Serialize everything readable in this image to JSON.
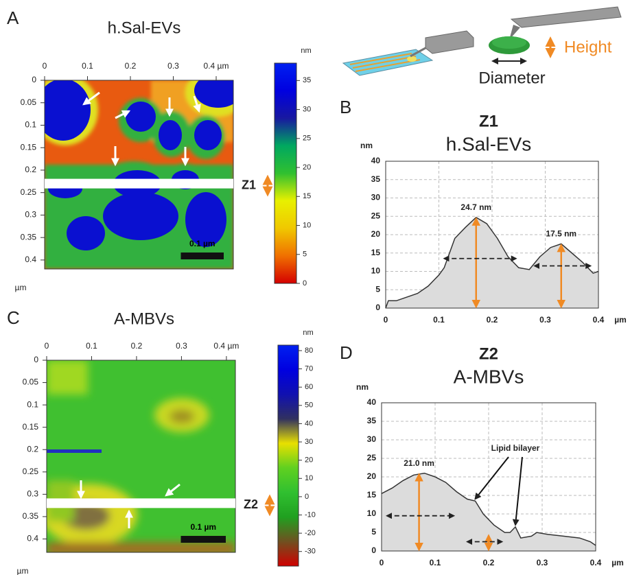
{
  "chart_data": [
    {
      "type": "afm",
      "panel": "A",
      "title": "h.Sal-EVs",
      "xlim": [
        0,
        0.44
      ],
      "xticks": [
        0,
        0.1,
        0.2,
        0.3,
        {
          "value": 0.4,
          "label": "0.4 µm"
        }
      ],
      "ylim": [
        0,
        0.42
      ],
      "yticks": [
        0,
        0.05,
        0.1,
        0.15,
        0.2,
        0.25,
        0.3,
        0.35,
        0.4
      ],
      "y_unit": "µm",
      "colorbar_unit": "nm",
      "clim": [
        0,
        38
      ],
      "cticks": [
        0,
        5,
        10,
        15,
        20,
        25,
        30,
        35
      ],
      "colormap": [
        "#d40000",
        "#f07000",
        "#f0c800",
        "#e8f000",
        "#30c030",
        "#00a860",
        "#1818a0",
        "#0000e0",
        "#0020f0"
      ],
      "scale_bar": {
        "label": "0.1 µm",
        "length": 0.1
      },
      "profile": {
        "label": "Z1",
        "y": 0.23
      }
    },
    {
      "type": "area",
      "panel": "B",
      "title": "Z1",
      "subtitle": "h.Sal-EVs",
      "y_label": "nm",
      "x_label": "µm",
      "xlim": [
        0,
        0.4
      ],
      "xticks": [
        0,
        0.1,
        0.2,
        0.3,
        0.4
      ],
      "ylim": [
        0,
        40
      ],
      "yticks": [
        0,
        5,
        10,
        15,
        20,
        25,
        30,
        35,
        40
      ],
      "grid": true,
      "x": [
        0,
        0.005,
        0.02,
        0.04,
        0.06,
        0.08,
        0.1,
        0.11,
        0.12,
        0.13,
        0.15,
        0.17,
        0.19,
        0.21,
        0.23,
        0.25,
        0.27,
        0.29,
        0.31,
        0.33,
        0.35,
        0.37,
        0.38,
        0.39,
        0.4
      ],
      "values": [
        0,
        2,
        2,
        3,
        4,
        6,
        9,
        11,
        15,
        19,
        22,
        24.7,
        23,
        19,
        14,
        11,
        10.5,
        14,
        16.5,
        17.5,
        15,
        12.5,
        11,
        9.5,
        10
      ],
      "annotations": [
        {
          "text": "24.7 nm",
          "x": 0.17,
          "y": 24.7
        },
        {
          "text": "17.5 nm",
          "x": 0.33,
          "y": 17.5
        }
      ],
      "height_arrows": [
        {
          "x": 0.17,
          "y": 24.7
        },
        {
          "x": 0.33,
          "y": 17.5
        }
      ],
      "diameter_arrows": [
        {
          "x0": 0.11,
          "x1": 0.245,
          "y": 13.5
        },
        {
          "x0": 0.28,
          "x1": 0.385,
          "y": 11.5
        }
      ]
    },
    {
      "type": "afm",
      "panel": "C",
      "title": "A-MBVs",
      "xlim": [
        0,
        0.42
      ],
      "xticks": [
        0,
        0.1,
        0.2,
        0.3,
        {
          "value": 0.4,
          "label": "0.4 µm"
        }
      ],
      "ylim": [
        0,
        0.43
      ],
      "yticks": [
        0,
        0.05,
        0.1,
        0.15,
        0.2,
        0.25,
        0.3,
        0.35,
        0.4
      ],
      "y_unit": "µm",
      "colorbar_unit": "nm",
      "clim": [
        -38,
        83
      ],
      "cticks": [
        -30,
        -20,
        -10,
        0,
        10,
        20,
        30,
        40,
        50,
        60,
        70,
        80
      ],
      "colormap": [
        "#d00000",
        "#705020",
        "#20a020",
        "#30c030",
        "#60d020",
        "#e8e000",
        "#303060",
        "#1010b0",
        "#0000e0",
        "#0020f0"
      ],
      "scale_bar": {
        "label": "0.1 µm",
        "length": 0.1
      },
      "profile": {
        "label": "Z2",
        "y": 0.32
      }
    },
    {
      "type": "area",
      "panel": "D",
      "title": "Z2",
      "subtitle": "A-MBVs",
      "y_label": "nm",
      "x_label": "µm",
      "xlim": [
        0,
        0.4
      ],
      "xticks": [
        0,
        0.1,
        0.2,
        0.3,
        0.4
      ],
      "ylim": [
        0,
        40
      ],
      "yticks": [
        0,
        5,
        10,
        15,
        20,
        25,
        30,
        35,
        40
      ],
      "grid": true,
      "x": [
        0,
        0.02,
        0.04,
        0.06,
        0.08,
        0.1,
        0.12,
        0.14,
        0.16,
        0.175,
        0.19,
        0.21,
        0.23,
        0.24,
        0.25,
        0.26,
        0.28,
        0.29,
        0.31,
        0.34,
        0.37,
        0.39,
        0.4
      ],
      "values": [
        15.5,
        17,
        19,
        20.5,
        21,
        20,
        18.5,
        16,
        14,
        13.5,
        10,
        7,
        5,
        5,
        6.5,
        3.5,
        4,
        5,
        4.5,
        4,
        3.5,
        2.5,
        1.5
      ],
      "annotations": [
        {
          "text": "21.0 nm",
          "x": 0.07,
          "y": 21
        },
        {
          "text": "Lipid bilayer",
          "x": 0.25,
          "y": 25,
          "targets": [
            [
              0.175,
              13.5
            ],
            [
              0.25,
              6.5
            ]
          ]
        }
      ],
      "height_arrows": [
        {
          "x": 0.07,
          "y": 21
        },
        {
          "x": 0.2,
          "y": 4.5
        }
      ],
      "diameter_arrows": [
        {
          "x0": 0.01,
          "x1": 0.135,
          "y": 9.5
        },
        {
          "x0": 0.16,
          "x1": 0.225,
          "y": 2.5
        }
      ]
    }
  ],
  "schematic": {
    "height": "Height",
    "diameter": "Diameter"
  }
}
